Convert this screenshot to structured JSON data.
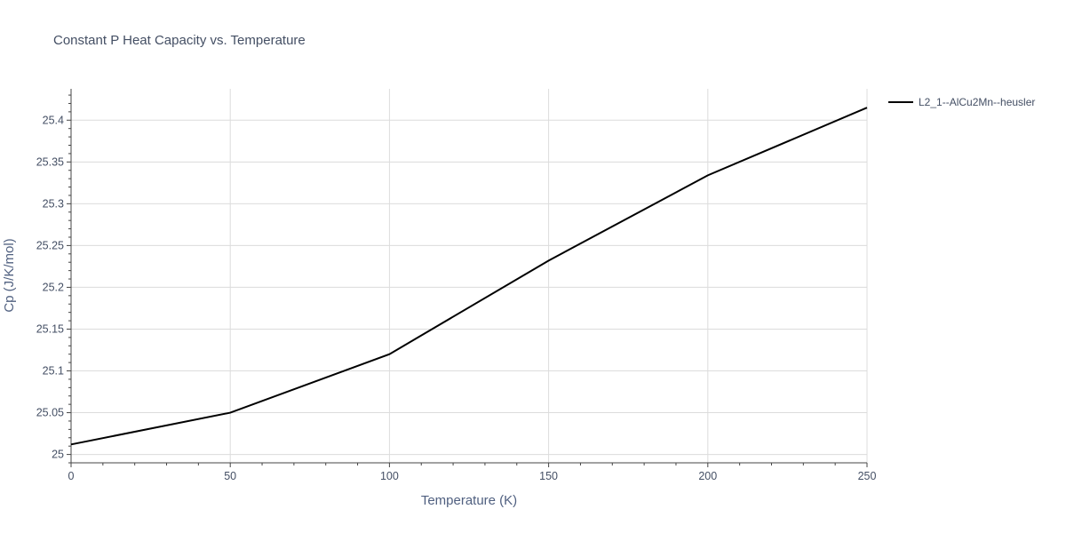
{
  "chart_data": {
    "type": "line",
    "title": "Constant P Heat Capacity vs. Temperature",
    "xlabel": "Temperature (K)",
    "ylabel": "Cp (J/K/mol)",
    "xlim": [
      0,
      250
    ],
    "ylim": [
      24.99,
      25.4375
    ],
    "x_ticks": [
      0,
      50,
      100,
      150,
      200,
      250
    ],
    "x_tick_labels": [
      "0",
      "50",
      "100",
      "150",
      "200",
      "250"
    ],
    "y_ticks": [
      25,
      25.05,
      25.1,
      25.15,
      25.2,
      25.25,
      25.3,
      25.35,
      25.4
    ],
    "y_tick_labels": [
      "25",
      "25.05",
      "25.1",
      "25.15",
      "25.2",
      "25.25",
      "25.3",
      "25.35",
      "25.4"
    ],
    "grid": true,
    "legend_position": "top-right",
    "series": [
      {
        "name": "L2_1--AlCu2Mn--heusler",
        "color": "#000000",
        "x": [
          0,
          50,
          100,
          150,
          200,
          250
        ],
        "y": [
          25.012,
          25.05,
          25.12,
          25.232,
          25.334,
          25.415
        ]
      }
    ]
  }
}
